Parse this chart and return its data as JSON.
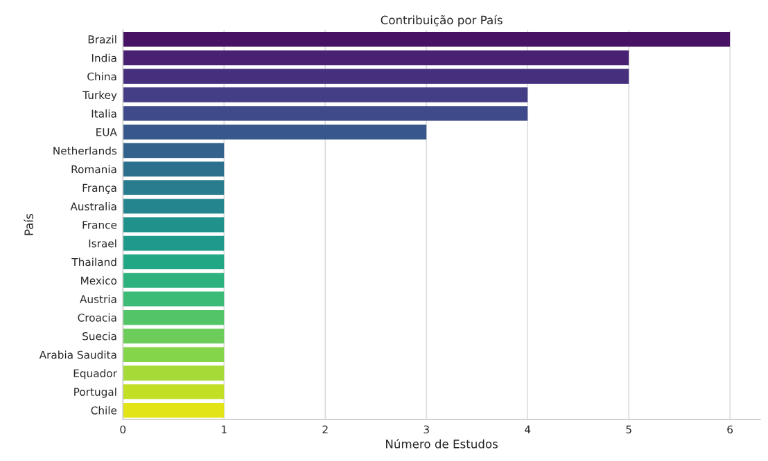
{
  "chart_data": {
    "type": "bar",
    "orientation": "horizontal",
    "title": "Contribuição por País",
    "xlabel": "Número de Estudos",
    "ylabel": "País",
    "categories": [
      "Brazil",
      "India",
      "China",
      "Turkey",
      "Italia",
      "EUA",
      "Netherlands",
      "Romania",
      "França",
      "Australia",
      "France",
      "Israel",
      "Thailand",
      "Mexico",
      "Austria",
      "Croacia",
      "Suecia",
      "Arabia Saudita",
      "Equador",
      "Portugal",
      "Chile"
    ],
    "values": [
      6,
      5,
      5,
      4,
      4,
      3,
      1,
      1,
      1,
      1,
      1,
      1,
      1,
      1,
      1,
      1,
      1,
      1,
      1,
      1,
      1
    ],
    "colors": [
      "#471164",
      "#482173",
      "#46307e",
      "#433e85",
      "#3e4a89",
      "#38588c",
      "#33638d",
      "#2d708e",
      "#297b8e",
      "#25858e",
      "#21918c",
      "#1f9a8a",
      "#22a785",
      "#2db27d",
      "#3bbb75",
      "#52c569",
      "#6ccd5a",
      "#85d54a",
      "#a5db36",
      "#c2df23",
      "#e2e418"
    ],
    "xlim": [
      0,
      6.3
    ],
    "xticks": [
      0,
      1,
      2,
      3,
      4,
      5,
      6
    ],
    "grid": "x"
  }
}
